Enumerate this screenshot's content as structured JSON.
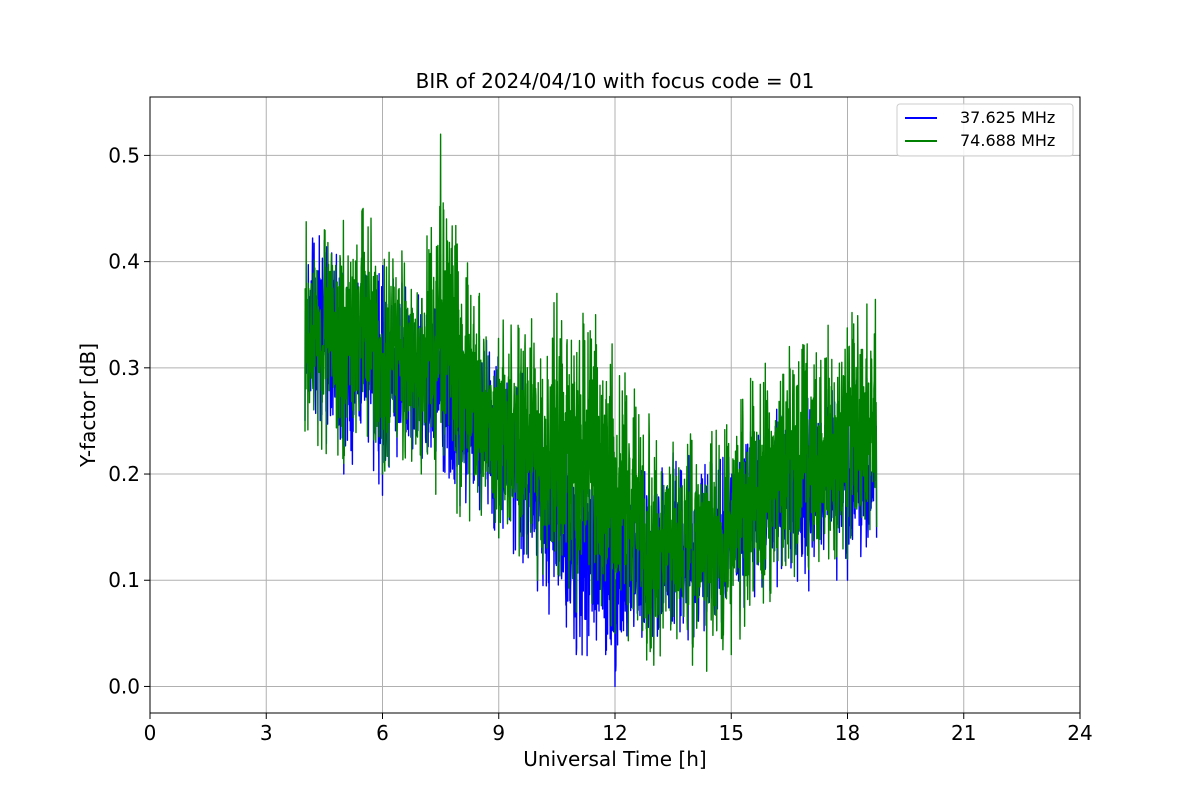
{
  "chart_data": {
    "type": "line",
    "title": "BIR of 2024/04/10 with focus code = 01",
    "xlabel": "Universal Time [h]",
    "ylabel": "Y-factor [dB]",
    "xlim": [
      0,
      24
    ],
    "ylim": [
      -0.025,
      0.555
    ],
    "xticks": [
      0,
      3,
      6,
      9,
      12,
      15,
      18,
      21,
      24
    ],
    "yticks": [
      0.0,
      0.1,
      0.2,
      0.3,
      0.4,
      0.5
    ],
    "grid": true,
    "legend_position": "top-right",
    "series": [
      {
        "name": "37.625 MHz",
        "color": "#0000ff",
        "x": [
          4.0,
          4.5,
          5.0,
          5.5,
          6.0,
          6.5,
          7.0,
          7.5,
          8.0,
          8.5,
          9.0,
          9.5,
          10.0,
          10.5,
          11.0,
          11.5,
          12.0,
          12.5,
          13.0,
          13.5,
          14.0,
          14.5,
          15.0,
          15.5,
          16.0,
          16.5,
          17.0,
          17.5,
          18.0,
          18.5,
          18.75
        ],
        "y_min": [
          0.25,
          0.23,
          0.2,
          0.22,
          0.18,
          0.2,
          0.21,
          0.19,
          0.17,
          0.16,
          0.14,
          0.12,
          0.09,
          0.05,
          0.03,
          0.02,
          0.0,
          0.02,
          0.03,
          0.04,
          0.04,
          0.05,
          0.06,
          0.08,
          0.09,
          0.09,
          0.09,
          0.1,
          0.1,
          0.11,
          0.14
        ],
        "y_max": [
          0.44,
          0.42,
          0.41,
          0.4,
          0.4,
          0.38,
          0.37,
          0.36,
          0.35,
          0.33,
          0.32,
          0.3,
          0.28,
          0.27,
          0.25,
          0.23,
          0.2,
          0.2,
          0.21,
          0.22,
          0.22,
          0.21,
          0.22,
          0.24,
          0.26,
          0.27,
          0.28,
          0.28,
          0.29,
          0.29,
          0.3
        ]
      },
      {
        "name": "74.688 MHz",
        "color": "#008000",
        "x": [
          4.0,
          4.5,
          5.0,
          5.5,
          6.0,
          6.5,
          7.0,
          7.5,
          8.0,
          8.5,
          9.0,
          9.5,
          10.0,
          10.5,
          11.0,
          11.5,
          12.0,
          12.5,
          13.0,
          13.5,
          14.0,
          14.5,
          15.0,
          15.5,
          16.0,
          16.5,
          17.0,
          17.5,
          18.0,
          18.5,
          18.75
        ],
        "y_min": [
          0.24,
          0.22,
          0.21,
          0.22,
          0.2,
          0.2,
          0.2,
          0.17,
          0.16,
          0.15,
          0.14,
          0.12,
          0.1,
          0.08,
          0.07,
          0.06,
          0.05,
          0.03,
          0.02,
          0.03,
          0.02,
          0.01,
          0.03,
          0.06,
          0.08,
          0.1,
          0.11,
          0.12,
          0.12,
          0.12,
          0.15
        ],
        "y_max": [
          0.44,
          0.43,
          0.44,
          0.45,
          0.43,
          0.41,
          0.43,
          0.52,
          0.42,
          0.37,
          0.35,
          0.34,
          0.36,
          0.37,
          0.37,
          0.35,
          0.32,
          0.28,
          0.25,
          0.23,
          0.24,
          0.24,
          0.25,
          0.29,
          0.31,
          0.32,
          0.33,
          0.34,
          0.35,
          0.36,
          0.39
        ]
      }
    ]
  }
}
